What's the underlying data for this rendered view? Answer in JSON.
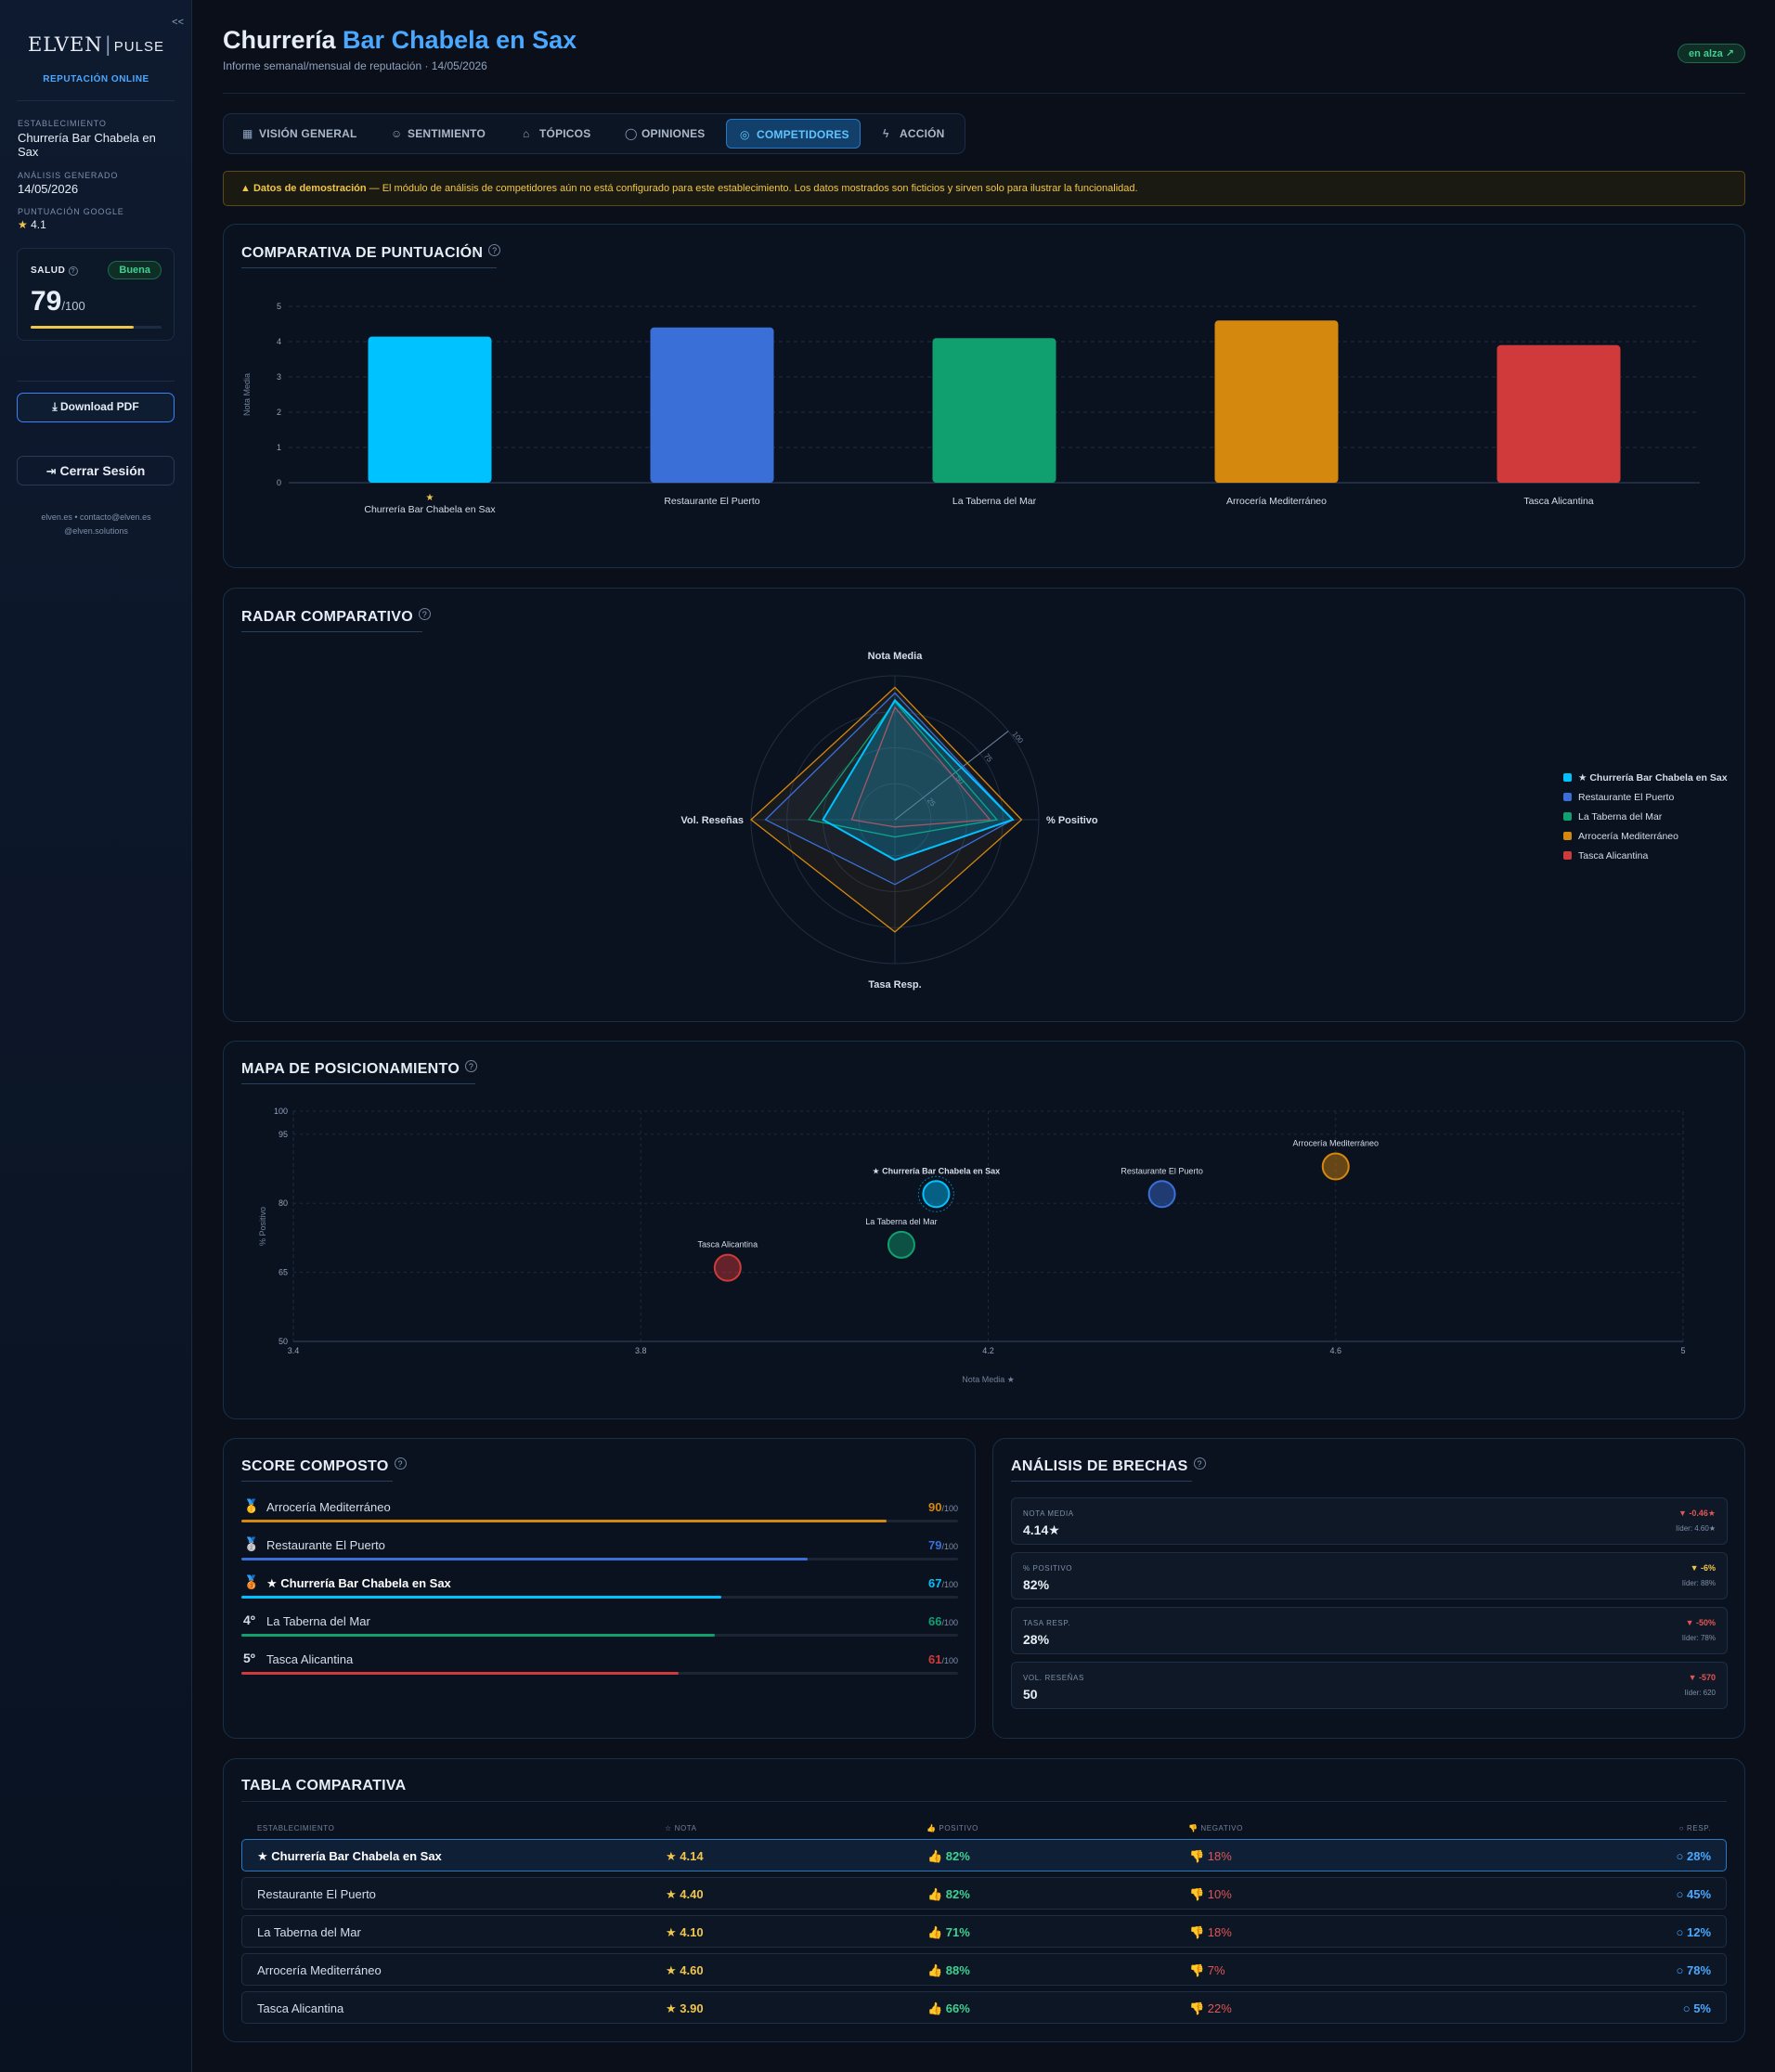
{
  "sidebar": {
    "collapse": "<<",
    "logo_a": "ELVEN",
    "logo_b": "PULSE",
    "subtitle": "REPUTACIÓN ONLINE",
    "estab_label": "ESTABLECIMIENTO",
    "estab_value": "Churrería Bar Chabela en Sax",
    "analysis_label": "ANÁLISIS GENERADO",
    "analysis_value": "14/05/2026",
    "google_label": "PUNTUACIÓN GOOGLE",
    "google_value": "4.1",
    "health_label": "SALUD",
    "health_badge": "Buena",
    "health_score": "79",
    "health_max": "/100",
    "health_level": 0.79,
    "download": "Download PDF",
    "logout": "Cerrar Sesión",
    "contact1": "elven.es • contacto@elven.es",
    "contact2": "@elven.solutions"
  },
  "header": {
    "title_a": "Churrería ",
    "title_b": "Bar Chabela en Sax",
    "subtitle": "Informe semanal/mensual de reputación · 14/05/2026",
    "trend": "en alza ↗"
  },
  "tabs": [
    {
      "label": "VISIÓN GENERAL",
      "icon": "grid-icon"
    },
    {
      "label": "SENTIMIENTO",
      "icon": "smile-icon"
    },
    {
      "label": "TÓPICOS",
      "icon": "tag-icon"
    },
    {
      "label": "OPINIONES",
      "icon": "chat-icon"
    },
    {
      "label": "COMPETIDORES",
      "icon": "target-icon"
    },
    {
      "label": "ACCIÓN",
      "icon": "bolt-icon"
    }
  ],
  "banner": {
    "bold": "Datos de demostración",
    "text": " — El módulo de análisis de competidores aún no está configurado para este establecimiento. Los datos mostrados son ficticios y sirven solo para ilustrar la funcionalidad."
  },
  "colors": {
    "c1": "#00c2ff",
    "c2": "#3a6fd8",
    "c3": "#10a070",
    "c4": "#d4880e",
    "c5": "#d03a3a"
  },
  "bar_chart": {
    "title": "COMPARATIVA DE PUNTUACIÓN",
    "ylabel": "Nota Media",
    "star": "★",
    "chart_data": {
      "type": "bar",
      "categories": [
        "Churrería Bar Chabela en Sax",
        "Restaurante El Puerto",
        "La Taberna del Mar",
        "Arrocería Mediterráneo",
        "Tasca Alicantina"
      ],
      "values": [
        4.14,
        4.4,
        4.1,
        4.6,
        3.9
      ],
      "yticks": [
        "0",
        "1",
        "2",
        "3",
        "4",
        "5"
      ],
      "ylim": [
        0,
        5
      ]
    }
  },
  "radar": {
    "title": "RADAR COMPARATIVO",
    "axes": [
      "Nota Media",
      "% Positivo",
      "Tasa Resp.",
      "Vol. Reseñas"
    ],
    "ring_labels": [
      "25",
      "50",
      "75",
      "100"
    ],
    "chart_data": {
      "type": "radar",
      "series": [
        {
          "name": "★ Churrería Bar Chabela en Sax",
          "values": [
            83,
            82,
            28,
            50
          ]
        },
        {
          "name": "Restaurante El Puerto",
          "values": [
            88,
            82,
            45,
            90
          ]
        },
        {
          "name": "La Taberna del Mar",
          "values": [
            82,
            71,
            12,
            60
          ]
        },
        {
          "name": "Arrocería Mediterráneo",
          "values": [
            92,
            88,
            78,
            100
          ]
        },
        {
          "name": "Tasca Alicantina",
          "values": [
            78,
            66,
            5,
            30
          ]
        }
      ]
    }
  },
  "bubble": {
    "title": "MAPA DE POSICIONAMIENTO",
    "xlabel": "Nota Media ★",
    "ylabel": "% Positivo",
    "xticks": [
      "3.4",
      "3.8",
      "4.2",
      "4.6",
      "5"
    ],
    "yticks": [
      "50",
      "65",
      "80",
      "95",
      "100"
    ],
    "chart_data": {
      "type": "scatter",
      "xlim": [
        3.4,
        5
      ],
      "ylim": [
        50,
        100
      ],
      "points": [
        {
          "label": "★ Churrería Bar Chabela en Sax",
          "x": 4.14,
          "y": 82
        },
        {
          "label": "Restaurante El Puerto",
          "x": 4.4,
          "y": 82
        },
        {
          "label": "La Taberna del Mar",
          "x": 4.1,
          "y": 71
        },
        {
          "label": "Arrocería Mediterráneo",
          "x": 4.6,
          "y": 88
        },
        {
          "label": "Tasca Alicantina",
          "x": 3.9,
          "y": 66
        }
      ]
    }
  },
  "score": {
    "title": "SCORE COMPOSTO",
    "max": "/100",
    "rows": [
      {
        "medal": "🥇",
        "name": "Arrocería Mediterráneo",
        "value": "90",
        "level": 0.9
      },
      {
        "medal": "🥈",
        "name": "Restaurante El Puerto",
        "value": "79",
        "level": 0.79
      },
      {
        "medal": "🥉",
        "name": "★ Churrería Bar Chabela en Sax",
        "value": "67",
        "level": 0.67
      },
      {
        "medal": "4º",
        "name": "La Taberna del Mar",
        "value": "66",
        "level": 0.66
      },
      {
        "medal": "5º",
        "name": "Tasca Alicantina",
        "value": "61",
        "level": 0.61
      }
    ]
  },
  "gaps": {
    "title": "ANÁLISIS DE BRECHAS",
    "rows": [
      {
        "label": "NOTA MEDIA",
        "value": "4.14★",
        "delta": "▼ -0.46★",
        "ref": "líder: 4.60★",
        "color": "#e05555"
      },
      {
        "label": "% POSITIVO",
        "value": "82%",
        "delta": "▼ -6%",
        "ref": "líder: 88%",
        "color": "#f0c64a"
      },
      {
        "label": "TASA RESP.",
        "value": "28%",
        "delta": "▼ -50%",
        "ref": "líder: 78%",
        "color": "#e05555"
      },
      {
        "label": "VOL. RESEÑAS",
        "value": "50",
        "delta": "▼ -570",
        "ref": "líder: 620",
        "color": "#e05555"
      }
    ]
  },
  "table": {
    "title": "TABLA COMPARATIVA",
    "headers": [
      "ESTABLECIMIENTO",
      "☆ NOTA",
      "👍 POSITIVO",
      "👎 NEGATIVO",
      "○ RESP."
    ],
    "rows": [
      {
        "name": "★ Churrería Bar Chabela en Sax",
        "nota": "★ 4.14",
        "pos": "👍 82%",
        "neg": "👎 18%",
        "resp": "○ 28%"
      },
      {
        "name": "Restaurante El Puerto",
        "nota": "★ 4.40",
        "pos": "👍 82%",
        "neg": "👎 10%",
        "resp": "○ 45%"
      },
      {
        "name": "La Taberna del Mar",
        "nota": "★ 4.10",
        "pos": "👍 71%",
        "neg": "👎 18%",
        "resp": "○ 12%"
      },
      {
        "name": "Arrocería Mediterráneo",
        "nota": "★ 4.60",
        "pos": "👍 88%",
        "neg": "👎 7%",
        "resp": "○ 78%"
      },
      {
        "name": "Tasca Alicantina",
        "nota": "★ 3.90",
        "pos": "👍 66%",
        "neg": "👎 22%",
        "resp": "○ 5%"
      }
    ]
  }
}
